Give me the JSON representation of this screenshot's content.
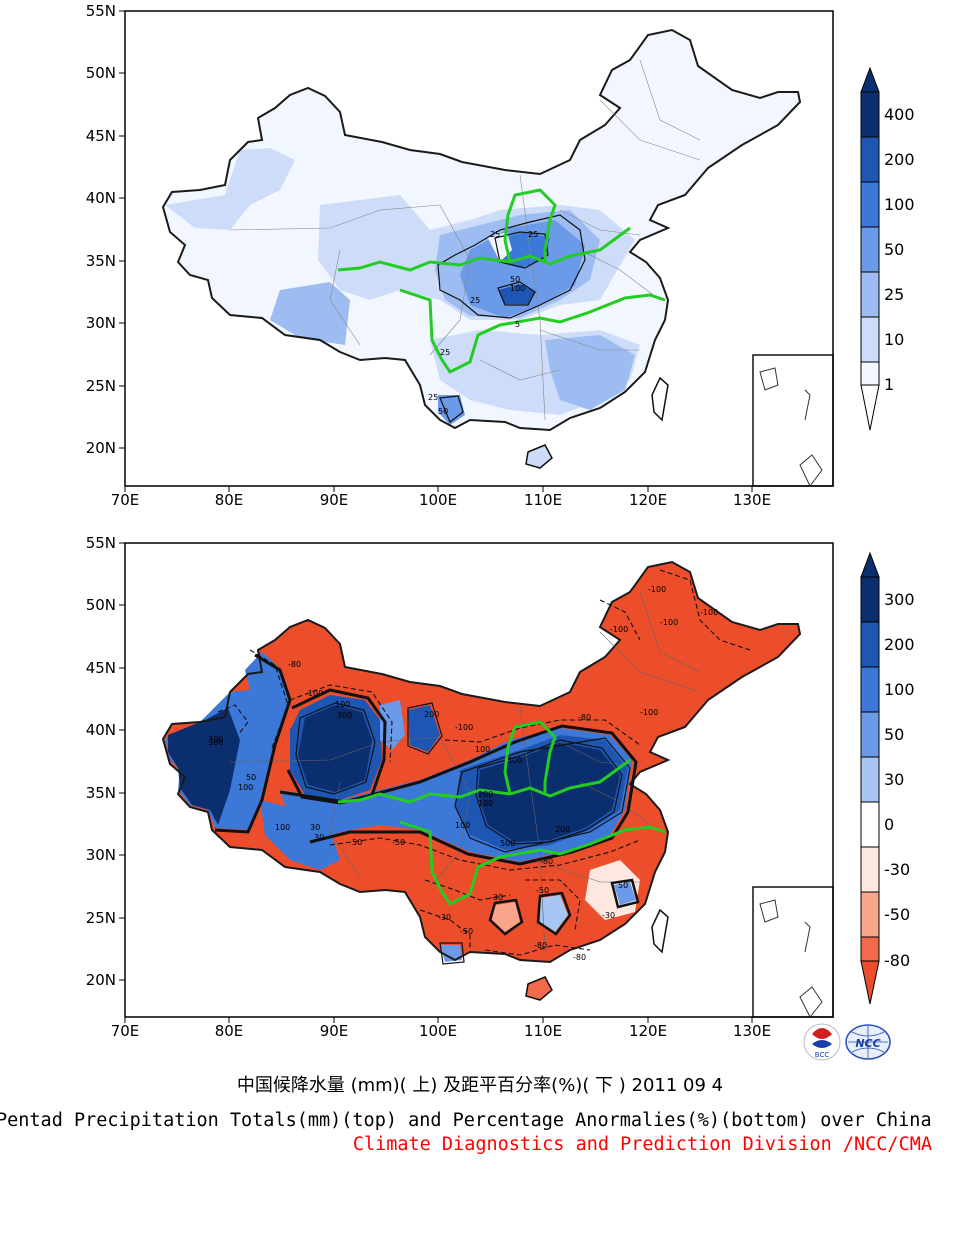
{
  "colors": {
    "china_line": "#1a1a1a",
    "river_green": "#22cc22",
    "red_text": "#ff0000"
  },
  "top_map": {
    "lat_ticks": [
      "55N",
      "50N",
      "45N",
      "40N",
      "35N",
      "30N",
      "25N",
      "20N"
    ],
    "lon_ticks": [
      "70E",
      "80E",
      "90E",
      "100E",
      "110E",
      "120E",
      "130E"
    ],
    "colorbar": {
      "labels": [
        "400",
        "200",
        "100",
        "50",
        "25",
        "10",
        "1"
      ],
      "colors": [
        "#0b2f6e",
        "#1e56b4",
        "#3c78d8",
        "#6a9ae8",
        "#9dbdf2",
        "#ccdcf9",
        "#f2f6fe"
      ]
    },
    "contour_labels": [
      "25",
      "25",
      "50",
      "100",
      "25",
      "5",
      "25",
      "50",
      "25"
    ]
  },
  "bottom_map": {
    "lat_ticks": [
      "55N",
      "50N",
      "45N",
      "40N",
      "35N",
      "30N",
      "25N",
      "20N"
    ],
    "lon_ticks": [
      "70E",
      "80E",
      "90E",
      "100E",
      "110E",
      "120E",
      "130E"
    ],
    "colorbar": {
      "labels": [
        "300",
        "200",
        "100",
        "50",
        "30",
        "0",
        "-30",
        "-50",
        "-80"
      ],
      "colors": [
        "#0b2f6e",
        "#1e56b4",
        "#3c78d8",
        "#6a9ae8",
        "#a8c6f4",
        "#ffffff",
        "#fde8e0",
        "#f8a58c",
        "#f26a4a",
        "#ec4e2c"
      ]
    },
    "contour_labels": [
      "-100",
      "-100",
      "-100",
      "-100",
      "-80",
      "-100",
      "300",
      "300",
      "100",
      "200",
      "-100",
      "-100",
      "-80",
      "100",
      "300",
      "200",
      "100",
      "50",
      "100",
      "100",
      "30",
      "50",
      "-50",
      "-80",
      "-30",
      "-50",
      "50",
      "-30",
      "-50",
      "-30",
      "30",
      "100",
      "-80",
      "-80",
      "500",
      "200",
      "300"
    ]
  },
  "logos": {
    "bcc": "BCC",
    "ncc": "NCC"
  },
  "titles": {
    "line1_cn": "中国候降水量 (mm)( 上) 及距平百分率(%)( 下 ) 2011 09 4",
    "line2_en": "Pentad Precipitation Totals(mm)(top) and Percentage Anormalies(%)(bottom) over China",
    "line3_red": "Climate Diagnostics and Prediction Division /NCC/CMA"
  }
}
